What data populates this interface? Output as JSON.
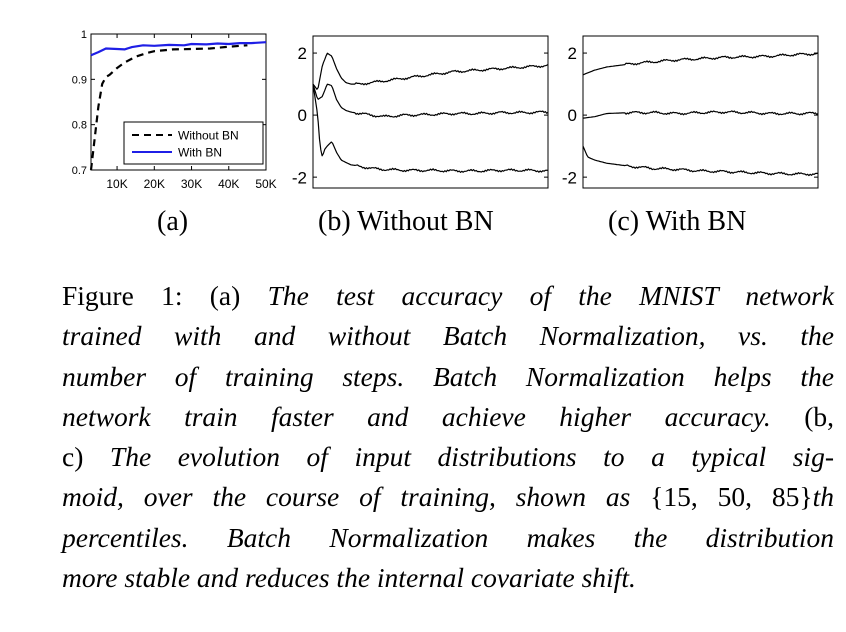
{
  "chart_data": [
    {
      "type": "line",
      "panel_label": "(a)",
      "xlim": [
        3000,
        50000
      ],
      "ylim": [
        0.7,
        1.0
      ],
      "x_ticks": [
        {
          "v": 10000,
          "label": "10K"
        },
        {
          "v": 20000,
          "label": "20K"
        },
        {
          "v": 30000,
          "label": "30K"
        },
        {
          "v": 40000,
          "label": "40K"
        },
        {
          "v": 50000,
          "label": "50K"
        }
      ],
      "y_ticks": [
        {
          "v": 0.7,
          "label": "0.7"
        },
        {
          "v": 0.8,
          "label": "0.8"
        },
        {
          "v": 0.9,
          "label": "0.9"
        },
        {
          "v": 1.0,
          "label": "1"
        }
      ],
      "legend_position": "bottom-right",
      "series": [
        {
          "name": "Without BN",
          "color": "#000000",
          "dash": "dashed",
          "x": [
            3000,
            4000,
            5000,
            6000,
            7000,
            8000,
            10000,
            12000,
            15000,
            18000,
            20000,
            25000,
            30000,
            35000,
            40000,
            45000
          ],
          "y": [
            0.7,
            0.77,
            0.84,
            0.89,
            0.905,
            0.91,
            0.925,
            0.937,
            0.95,
            0.958,
            0.962,
            0.966,
            0.967,
            0.968,
            0.972,
            0.975
          ]
        },
        {
          "name": "With BN",
          "color": "#1f1fe6",
          "dash": "solid",
          "x": [
            3000,
            5000,
            7000,
            10000,
            12000,
            14000,
            17000,
            20000,
            24000,
            28000,
            30000,
            34000,
            37000,
            40000,
            43000,
            46000,
            50000
          ],
          "y": [
            0.953,
            0.96,
            0.968,
            0.967,
            0.966,
            0.971,
            0.975,
            0.974,
            0.976,
            0.975,
            0.978,
            0.977,
            0.979,
            0.978,
            0.98,
            0.98,
            0.982
          ]
        }
      ]
    },
    {
      "type": "line",
      "panel_label": "(b) Without BN",
      "xlim": [
        0,
        100
      ],
      "ylim": [
        -2.35,
        2.55
      ],
      "y_ticks": [
        {
          "v": 2,
          "label": "2"
        },
        {
          "v": 0,
          "label": "0"
        },
        {
          "v": -2,
          "label": "-2"
        }
      ],
      "series": [
        {
          "name": "",
          "color": "#000000",
          "x": [
            0,
            2,
            4,
            6,
            8,
            10,
            12,
            14,
            16,
            20,
            25,
            30,
            40,
            50,
            60,
            70,
            80,
            90,
            100
          ],
          "y": [
            1.0,
            0.8,
            1.6,
            2.0,
            1.9,
            1.5,
            1.2,
            1.05,
            1.0,
            1.0,
            1.05,
            1.1,
            1.2,
            1.3,
            1.4,
            1.45,
            1.5,
            1.55,
            1.6
          ]
        },
        {
          "name": "",
          "color": "#000000",
          "x": [
            0,
            2,
            4,
            6,
            8,
            10,
            12,
            14,
            16,
            20,
            25,
            30,
            40,
            50,
            60,
            70,
            80,
            90,
            100
          ],
          "y": [
            1.0,
            0.5,
            0.6,
            1.0,
            0.95,
            0.5,
            0.25,
            0.15,
            0.1,
            0.05,
            0.0,
            -0.05,
            0.0,
            0.02,
            0.05,
            0.05,
            0.08,
            0.08,
            0.1
          ]
        },
        {
          "name": "",
          "color": "#000000",
          "x": [
            0,
            2,
            3,
            4,
            5,
            6,
            8,
            10,
            12,
            16,
            20,
            25,
            30,
            40,
            50,
            60,
            70,
            80,
            90,
            100
          ],
          "y": [
            1.0,
            0.0,
            -1.0,
            -1.35,
            -1.1,
            -1.0,
            -0.85,
            -1.2,
            -1.45,
            -1.6,
            -1.65,
            -1.72,
            -1.75,
            -1.78,
            -1.78,
            -1.8,
            -1.8,
            -1.78,
            -1.78,
            -1.8
          ]
        }
      ]
    },
    {
      "type": "line",
      "panel_label": "(c) With BN",
      "xlim": [
        0,
        100
      ],
      "ylim": [
        -2.35,
        2.55
      ],
      "y_ticks": [
        {
          "v": 2,
          "label": "2"
        },
        {
          "v": 0,
          "label": "0"
        },
        {
          "v": -2,
          "label": "-2"
        }
      ],
      "series": [
        {
          "name": "",
          "color": "#000000",
          "x": [
            0,
            5,
            10,
            20,
            30,
            40,
            50,
            60,
            70,
            80,
            90,
            100
          ],
          "y": [
            1.3,
            1.45,
            1.55,
            1.65,
            1.72,
            1.78,
            1.82,
            1.86,
            1.88,
            1.9,
            1.95,
            1.98
          ]
        },
        {
          "name": "",
          "color": "#000000",
          "x": [
            0,
            5,
            10,
            20,
            30,
            40,
            50,
            60,
            70,
            80,
            90,
            100
          ],
          "y": [
            -0.1,
            -0.05,
            0.05,
            0.08,
            0.08,
            0.05,
            0.08,
            0.1,
            0.08,
            0.05,
            0.05,
            0.06
          ]
        },
        {
          "name": "",
          "color": "#000000",
          "x": [
            0,
            2,
            5,
            10,
            20,
            30,
            40,
            50,
            60,
            70,
            80,
            90,
            100
          ],
          "y": [
            -1.0,
            -1.35,
            -1.45,
            -1.55,
            -1.65,
            -1.72,
            -1.75,
            -1.8,
            -1.82,
            -1.85,
            -1.88,
            -1.9,
            -1.9
          ]
        }
      ]
    }
  ],
  "caption": {
    "l1a": "Figure 1:  (a) ",
    "l1b": "The test accuracy of the MNIST network",
    "l2": "trained with and without Batch Normalization, vs.  the",
    "l3": "number of training steps.  Batch Normalization helps the",
    "l4a": "network train faster and achieve higher accuracy. ",
    "l4b": " (b,",
    "l5a": "c) ",
    "l5b": "The evolution of input distributions to a typical sig-",
    "l6a": "moid, over the course of training, shown as ",
    "l6b": "{15, 50, 85}",
    "l6c": "th",
    "l7": "percentiles.  Batch Normalization makes the distribution",
    "l8": "more stable and reduces the internal covariate shift."
  }
}
